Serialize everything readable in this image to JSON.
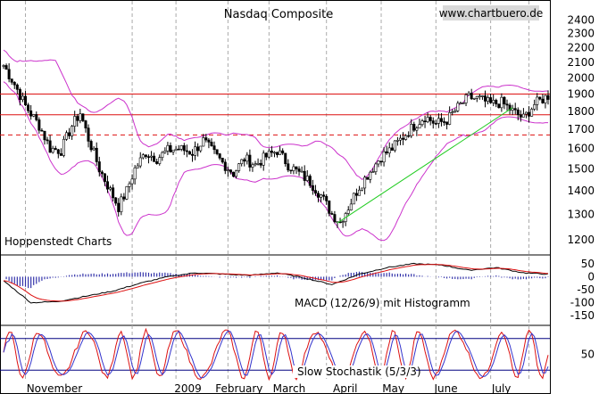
{
  "chart_data": [
    {
      "type": "candlestick",
      "panel": "price",
      "title": "Nasdaq Composite",
      "watermark": "www.chartbuero.de",
      "source_note": "Hoppenstedt Charts",
      "y_scale": "log",
      "ylim": [
        1150,
        2500
      ],
      "y_ticks": [
        1200,
        1300,
        1400,
        1500,
        1600,
        1700,
        1800,
        1900,
        2000,
        2100,
        2200,
        2300,
        2400
      ],
      "x_ticks": [
        "November",
        "2009",
        "February",
        "March",
        "April",
        "May",
        "June",
        "July"
      ],
      "n_periods": 200,
      "close_path_anchors": [
        [
          0,
          2080
        ],
        [
          4,
          1960
        ],
        [
          8,
          1830
        ],
        [
          13,
          1720
        ],
        [
          17,
          1600
        ],
        [
          21,
          1590
        ],
        [
          25,
          1720
        ],
        [
          28,
          1790
        ],
        [
          31,
          1650
        ],
        [
          35,
          1500
        ],
        [
          39,
          1400
        ],
        [
          42,
          1330
        ],
        [
          45,
          1400
        ],
        [
          48,
          1500
        ],
        [
          52,
          1580
        ],
        [
          56,
          1550
        ],
        [
          60,
          1590
        ],
        [
          64,
          1600
        ],
        [
          69,
          1580
        ],
        [
          73,
          1640
        ],
        [
          76,
          1590
        ],
        [
          80,
          1530
        ],
        [
          84,
          1480
        ],
        [
          88,
          1550
        ],
        [
          92,
          1520
        ],
        [
          96,
          1560
        ],
        [
          100,
          1590
        ],
        [
          104,
          1520
        ],
        [
          108,
          1480
        ],
        [
          112,
          1440
        ],
        [
          116,
          1380
        ],
        [
          120,
          1300
        ],
        [
          123,
          1270
        ],
        [
          126,
          1330
        ],
        [
          130,
          1420
        ],
        [
          134,
          1490
        ],
        [
          138,
          1560
        ],
        [
          142,
          1600
        ],
        [
          146,
          1660
        ],
        [
          150,
          1720
        ],
        [
          154,
          1770
        ],
        [
          158,
          1730
        ],
        [
          162,
          1750
        ],
        [
          166,
          1820
        ],
        [
          170,
          1880
        ],
        [
          174,
          1870
        ],
        [
          178,
          1840
        ],
        [
          182,
          1850
        ],
        [
          186,
          1800
        ],
        [
          190,
          1760
        ],
        [
          194,
          1840
        ],
        [
          199,
          1890
        ]
      ],
      "horizontal_lines": [
        {
          "value": 1900,
          "style": "solid",
          "color": "#dd1111"
        },
        {
          "value": 1780,
          "style": "solid",
          "color": "#dd1111"
        },
        {
          "value": 1670,
          "style": "dashed",
          "color": "#dd1111"
        }
      ],
      "trendline": {
        "from": [
          122,
          1265
        ],
        "to": [
          186,
          1820
        ],
        "color": "#22cc22"
      },
      "bollinger_bands": {
        "color": "#cc33cc"
      }
    },
    {
      "type": "line",
      "panel": "macd",
      "label": "MACD (12/26/9) mit Histogramm",
      "y_ticks": [
        50,
        0,
        -50,
        -100,
        -150
      ],
      "ylim": [
        -180,
        70
      ],
      "series": [
        {
          "color": "#000000"
        },
        {
          "color": "#dd1111"
        }
      ],
      "histogram_color": "#3333aa",
      "macd_anchors": [
        [
          0,
          -15
        ],
        [
          10,
          -100
        ],
        [
          20,
          -95
        ],
        [
          30,
          -75
        ],
        [
          40,
          -55
        ],
        [
          50,
          -25
        ],
        [
          60,
          0
        ],
        [
          70,
          15
        ],
        [
          80,
          10
        ],
        [
          90,
          5
        ],
        [
          100,
          15
        ],
        [
          110,
          -5
        ],
        [
          120,
          -30
        ],
        [
          130,
          10
        ],
        [
          140,
          35
        ],
        [
          150,
          50
        ],
        [
          160,
          45
        ],
        [
          170,
          25
        ],
        [
          180,
          35
        ],
        [
          190,
          15
        ],
        [
          199,
          10
        ]
      ]
    },
    {
      "type": "line",
      "panel": "stochastic",
      "label": "Slow Stochastik (5/3/3)",
      "y_ticks": [
        50
      ],
      "ylim": [
        0,
        100
      ],
      "reference_lines": [
        80,
        20
      ],
      "series": [
        {
          "color": "#dd1111"
        },
        {
          "color": "#3333cc"
        }
      ]
    }
  ]
}
